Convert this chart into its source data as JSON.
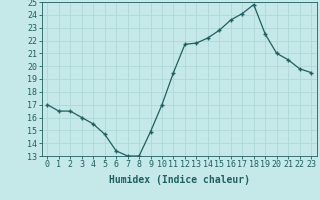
{
  "x": [
    0,
    1,
    2,
    3,
    4,
    5,
    6,
    7,
    8,
    9,
    10,
    11,
    12,
    13,
    14,
    15,
    16,
    17,
    18,
    19,
    20,
    21,
    22,
    23
  ],
  "y": [
    17.0,
    16.5,
    16.5,
    16.0,
    15.5,
    14.7,
    13.4,
    13.0,
    13.0,
    14.9,
    17.0,
    19.5,
    21.7,
    21.8,
    22.2,
    22.8,
    23.6,
    24.1,
    24.8,
    22.5,
    21.0,
    20.5,
    19.8,
    19.5
  ],
  "xlabel": "Humidex (Indice chaleur)",
  "xlim": [
    -0.5,
    23.5
  ],
  "ylim": [
    13,
    25
  ],
  "yticks": [
    13,
    14,
    15,
    16,
    17,
    18,
    19,
    20,
    21,
    22,
    23,
    24,
    25
  ],
  "xticks": [
    0,
    1,
    2,
    3,
    4,
    5,
    6,
    7,
    8,
    9,
    10,
    11,
    12,
    13,
    14,
    15,
    16,
    17,
    18,
    19,
    20,
    21,
    22,
    23
  ],
  "line_color": "#206060",
  "bg_color": "#c5e8e8",
  "grid_color": "#b0d8d8",
  "tick_label_color": "#206060",
  "font_size": 6,
  "xlabel_fontsize": 7
}
